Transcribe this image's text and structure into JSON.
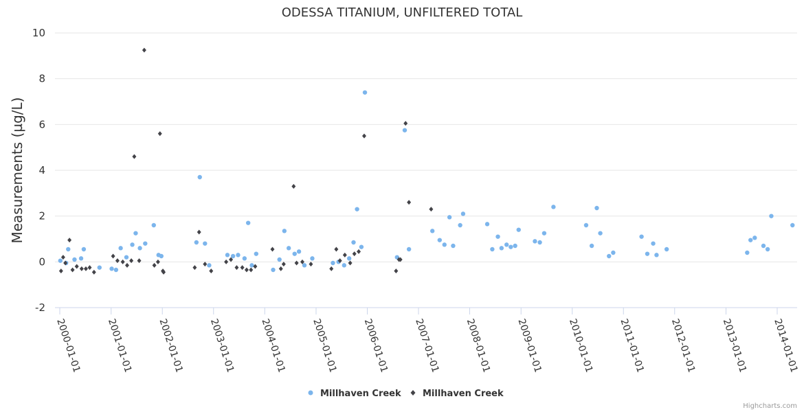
{
  "chart_data": {
    "type": "scatter",
    "title": "ODESSA TITANIUM, UNFILTERED TOTAL",
    "ylabel": "Measurements (µg/L)",
    "xlabel": "",
    "ylim": [
      -2,
      10
    ],
    "yticks": [
      -2,
      0,
      2,
      4,
      6,
      8,
      10
    ],
    "xlim": [
      "2000-01-01",
      "2014-01-01"
    ],
    "xticks": [
      "2000-01-01",
      "2001-01-01",
      "2002-01-01",
      "2003-01-01",
      "2004-01-01",
      "2005-01-01",
      "2006-01-01",
      "2007-01-01",
      "2008-01-01",
      "2009-01-01",
      "2010-01-01",
      "2011-01-01",
      "2012-01-01",
      "2013-01-01",
      "2014-01-01"
    ],
    "grid": true,
    "legend": "bottom-center",
    "series": [
      {
        "name": "Millhaven Creek",
        "marker": "circle",
        "color": "#7cb5ec",
        "points": [
          [
            "2000-01-05",
            0.05
          ],
          [
            "2000-02-15",
            -0.05
          ],
          [
            "2000-03-01",
            0.55
          ],
          [
            "2000-04-15",
            0.1
          ],
          [
            "2000-06-01",
            0.15
          ],
          [
            "2000-06-20",
            0.55
          ],
          [
            "2000-10-10",
            -0.25
          ],
          [
            "2001-01-05",
            -0.3
          ],
          [
            "2001-02-05",
            -0.35
          ],
          [
            "2001-03-10",
            0.6
          ],
          [
            "2001-04-20",
            0.2
          ],
          [
            "2001-06-01",
            0.75
          ],
          [
            "2001-06-25",
            1.25
          ],
          [
            "2001-07-25",
            0.6
          ],
          [
            "2001-09-01",
            0.8
          ],
          [
            "2001-11-01",
            1.6
          ],
          [
            "2001-12-05",
            0.3
          ],
          [
            "2001-12-25",
            0.25
          ],
          [
            "2002-09-01",
            0.85
          ],
          [
            "2002-09-25",
            3.7
          ],
          [
            "2002-11-01",
            0.8
          ],
          [
            "2002-12-01",
            -0.15
          ],
          [
            "2003-04-10",
            0.3
          ],
          [
            "2003-05-20",
            0.25
          ],
          [
            "2003-06-25",
            0.3
          ],
          [
            "2003-08-10",
            0.15
          ],
          [
            "2003-09-05",
            1.7
          ],
          [
            "2003-10-01",
            -0.15
          ],
          [
            "2003-11-01",
            0.35
          ],
          [
            "2004-03-01",
            -0.35
          ],
          [
            "2004-04-15",
            0.1
          ],
          [
            "2004-05-20",
            1.35
          ],
          [
            "2004-06-20",
            0.6
          ],
          [
            "2004-08-01",
            0.35
          ],
          [
            "2004-09-01",
            0.45
          ],
          [
            "2004-10-10",
            -0.15
          ],
          [
            "2004-12-05",
            0.15
          ],
          [
            "2005-05-01",
            -0.05
          ],
          [
            "2005-06-10",
            0.0
          ],
          [
            "2005-07-20",
            -0.15
          ],
          [
            "2005-08-25",
            0.15
          ],
          [
            "2005-09-25",
            0.85
          ],
          [
            "2005-10-20",
            2.3
          ],
          [
            "2005-11-20",
            0.65
          ],
          [
            "2005-12-15",
            7.4
          ],
          [
            "2006-08-01",
            0.2
          ],
          [
            "2006-09-25",
            5.75
          ],
          [
            "2006-10-25",
            0.55
          ],
          [
            "2007-04-10",
            1.35
          ],
          [
            "2007-06-01",
            0.95
          ],
          [
            "2007-07-05",
            0.75
          ],
          [
            "2007-08-10",
            1.95
          ],
          [
            "2007-09-05",
            0.7
          ],
          [
            "2007-10-25",
            1.6
          ],
          [
            "2007-11-15",
            2.1
          ],
          [
            "2008-05-05",
            1.65
          ],
          [
            "2008-06-10",
            0.55
          ],
          [
            "2008-07-20",
            1.1
          ],
          [
            "2008-08-15",
            0.6
          ],
          [
            "2008-09-20",
            0.75
          ],
          [
            "2008-10-20",
            0.65
          ],
          [
            "2008-11-20",
            0.7
          ],
          [
            "2008-12-15",
            1.4
          ],
          [
            "2009-04-10",
            0.9
          ],
          [
            "2009-05-15",
            0.85
          ],
          [
            "2009-06-15",
            1.25
          ],
          [
            "2009-08-20",
            2.4
          ],
          [
            "2010-04-10",
            1.6
          ],
          [
            "2010-05-20",
            0.7
          ],
          [
            "2010-06-25",
            2.35
          ],
          [
            "2010-07-20",
            1.25
          ],
          [
            "2010-09-20",
            0.25
          ],
          [
            "2010-10-20",
            0.4
          ],
          [
            "2011-05-10",
            1.1
          ],
          [
            "2011-06-20",
            0.35
          ],
          [
            "2011-08-01",
            0.8
          ],
          [
            "2011-08-25",
            0.3
          ],
          [
            "2011-11-05",
            0.55
          ],
          [
            "2013-06-01",
            0.4
          ],
          [
            "2013-06-25",
            0.95
          ],
          [
            "2013-07-25",
            1.05
          ],
          [
            "2013-09-25",
            0.7
          ],
          [
            "2013-10-25",
            0.55
          ],
          [
            "2013-11-20",
            2.0
          ],
          [
            "2014-04-20",
            1.6
          ]
        ]
      },
      {
        "name": "Millhaven Creek",
        "marker": "diamond",
        "color": "#434348",
        "points": [
          [
            "2000-01-10",
            -0.4
          ],
          [
            "2000-01-25",
            0.2
          ],
          [
            "2000-02-10",
            -0.05
          ],
          [
            "2000-03-10",
            0.95
          ],
          [
            "2000-04-01",
            -0.35
          ],
          [
            "2000-05-01",
            -0.2
          ],
          [
            "2000-06-05",
            -0.3
          ],
          [
            "2000-07-05",
            -0.3
          ],
          [
            "2000-08-01",
            -0.25
          ],
          [
            "2000-09-01",
            -0.45
          ],
          [
            "2001-01-15",
            0.25
          ],
          [
            "2001-02-15",
            0.05
          ],
          [
            "2001-03-25",
            0.0
          ],
          [
            "2001-04-25",
            -0.15
          ],
          [
            "2001-05-25",
            0.05
          ],
          [
            "2001-06-15",
            4.6
          ],
          [
            "2001-07-20",
            0.05
          ],
          [
            "2001-08-25",
            9.25
          ],
          [
            "2001-11-05",
            -0.15
          ],
          [
            "2001-12-01",
            0.0
          ],
          [
            "2001-12-15",
            5.6
          ],
          [
            "2002-01-05",
            -0.4
          ],
          [
            "2002-01-10",
            -0.45
          ],
          [
            "2002-08-20",
            -0.25
          ],
          [
            "2002-09-20",
            1.3
          ],
          [
            "2002-11-01",
            -0.1
          ],
          [
            "2002-12-15",
            -0.4
          ],
          [
            "2003-04-01",
            0.0
          ],
          [
            "2003-05-05",
            0.1
          ],
          [
            "2003-06-15",
            -0.25
          ],
          [
            "2003-07-25",
            -0.25
          ],
          [
            "2003-08-25",
            -0.35
          ],
          [
            "2003-09-25",
            -0.35
          ],
          [
            "2003-10-25",
            -0.2
          ],
          [
            "2004-02-25",
            0.55
          ],
          [
            "2004-04-25",
            -0.3
          ],
          [
            "2004-05-15",
            -0.1
          ],
          [
            "2004-07-25",
            3.3
          ],
          [
            "2004-08-15",
            -0.05
          ],
          [
            "2004-09-25",
            0.0
          ],
          [
            "2004-11-25",
            -0.1
          ],
          [
            "2005-04-20",
            -0.3
          ],
          [
            "2005-05-25",
            0.55
          ],
          [
            "2005-06-20",
            0.05
          ],
          [
            "2005-07-25",
            0.3
          ],
          [
            "2005-09-01",
            -0.05
          ],
          [
            "2005-10-01",
            0.35
          ],
          [
            "2005-11-01",
            0.45
          ],
          [
            "2005-12-10",
            5.5
          ],
          [
            "2006-07-25",
            -0.4
          ],
          [
            "2006-08-15",
            0.1
          ],
          [
            "2006-08-25",
            0.1
          ],
          [
            "2006-10-01",
            6.05
          ],
          [
            "2006-10-25",
            2.6
          ],
          [
            "2007-04-01",
            2.3
          ]
        ]
      }
    ]
  },
  "credits": "Highcharts.com"
}
